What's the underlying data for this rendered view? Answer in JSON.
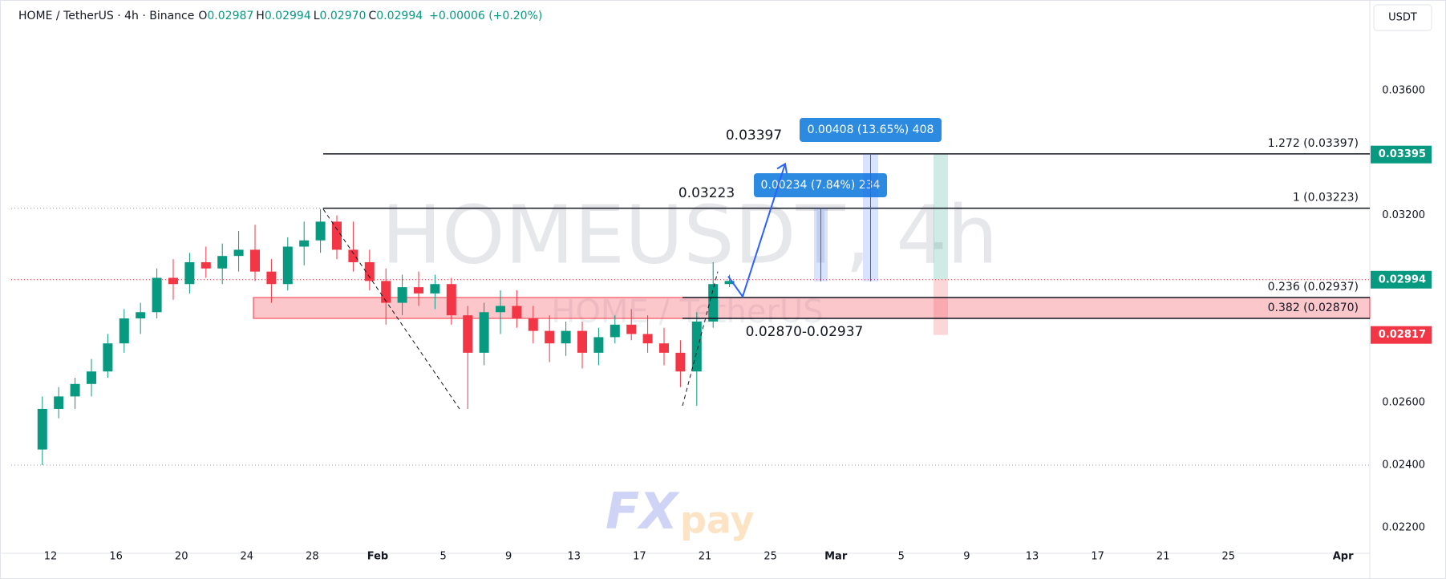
{
  "chart_data": {
    "type": "candlestick",
    "title": "HOME / TetherUS · 4h · Binance",
    "ohlc": [
      {
        "key": "O",
        "value": "0.02987"
      },
      {
        "key": "H",
        "value": "0.02994"
      },
      {
        "key": "L",
        "value": "0.02970"
      },
      {
        "key": "C",
        "value": "0.02994"
      }
    ],
    "change": "+0.00006 (+0.20%)",
    "currency": "USDT",
    "watermark": "HOMEUSDT, 4h",
    "watermark_sub": "HOME / TetherUS",
    "logo": [
      "FX",
      "pay"
    ],
    "up_color": "#089981",
    "down_color": "#f23645",
    "candles": {
      "open": [
        0.0245,
        0.0258,
        0.0262,
        0.0266,
        0.027,
        0.0279,
        0.0287,
        0.0289,
        0.03,
        0.0298,
        0.0305,
        0.0303,
        0.0307,
        0.0309,
        0.0302,
        0.0298,
        0.031,
        0.0312,
        0.0318,
        0.0309,
        0.0305,
        0.0299,
        0.0292,
        0.0297,
        0.0295,
        0.0298,
        0.0288,
        0.0276,
        0.0289,
        0.0291,
        0.0287,
        0.0283,
        0.0279,
        0.0283,
        0.0276,
        0.0281,
        0.0285,
        0.0282,
        0.0279,
        0.0276,
        0.027,
        0.0286,
        0.0298
      ],
      "high": [
        0.0262,
        0.0265,
        0.0268,
        0.0274,
        0.0282,
        0.029,
        0.0292,
        0.0303,
        0.0306,
        0.0308,
        0.031,
        0.0311,
        0.0315,
        0.0317,
        0.0306,
        0.0313,
        0.0318,
        0.0322,
        0.032,
        0.0318,
        0.0309,
        0.0303,
        0.0301,
        0.0302,
        0.0301,
        0.03,
        0.0291,
        0.0292,
        0.0296,
        0.0296,
        0.0291,
        0.0288,
        0.0286,
        0.0286,
        0.0284,
        0.0288,
        0.029,
        0.0288,
        0.0284,
        0.028,
        0.0289,
        0.0305,
        0.0301
      ],
      "low": [
        0.024,
        0.0255,
        0.0258,
        0.0262,
        0.0268,
        0.0276,
        0.0282,
        0.0287,
        0.0293,
        0.0295,
        0.03,
        0.0298,
        0.0302,
        0.0299,
        0.0292,
        0.0296,
        0.0304,
        0.0308,
        0.0306,
        0.0302,
        0.0296,
        0.0285,
        0.0288,
        0.0291,
        0.029,
        0.0285,
        0.0258,
        0.0272,
        0.0282,
        0.0284,
        0.0279,
        0.0273,
        0.0275,
        0.0271,
        0.0272,
        0.0279,
        0.028,
        0.0276,
        0.0272,
        0.0265,
        0.0259,
        0.0284,
        0.0297
      ],
      "close": [
        0.0258,
        0.0262,
        0.0266,
        0.027,
        0.0279,
        0.0287,
        0.0289,
        0.03,
        0.0298,
        0.0305,
        0.0303,
        0.0307,
        0.0309,
        0.0302,
        0.0298,
        0.031,
        0.0312,
        0.0318,
        0.0309,
        0.0305,
        0.0299,
        0.0292,
        0.0297,
        0.0295,
        0.0298,
        0.0288,
        0.0276,
        0.0289,
        0.0291,
        0.0287,
        0.0283,
        0.0279,
        0.0283,
        0.0276,
        0.0281,
        0.0285,
        0.0282,
        0.0279,
        0.0276,
        0.027,
        0.0286,
        0.0298,
        0.0299
      ]
    },
    "ylim": [
      0.0212,
      0.0389
    ],
    "yticks": [
      {
        "value": 0.022,
        "label": "0.02200"
      },
      {
        "value": 0.024,
        "label": "0.02400"
      },
      {
        "value": 0.026,
        "label": "0.02600"
      },
      {
        "value": 0.032,
        "label": "0.03200"
      },
      {
        "value": 0.036,
        "label": "0.03600"
      }
    ],
    "xticks": [
      "12",
      "16",
      "20",
      "24",
      "28",
      "Feb",
      "5",
      "9",
      "13",
      "17",
      "21",
      "25",
      "Mar",
      "5",
      "9",
      "13",
      "17",
      "21",
      "25",
      "Apr"
    ],
    "levels": [
      {
        "value": 0.03397,
        "label": "1.272 (0.03397)"
      },
      {
        "value": 0.03223,
        "label": "1 (0.03223)"
      },
      {
        "value": 0.02937,
        "label": "0.236 (0.02937)"
      },
      {
        "value": 0.0287,
        "label": "0.382 (0.02870)"
      }
    ],
    "targets": [
      "0.03397",
      "0.03223"
    ],
    "zone_label": "0.02870-0.02937",
    "measures": [
      {
        "label": "0.00234 (7.84%) 234",
        "from": 0.02989,
        "to": 0.03223
      },
      {
        "label": "0.00408 (13.65%) 408",
        "from": 0.02989,
        "to": 0.03397
      }
    ],
    "projection": [
      0.03005,
      0.0294,
      0.03365
    ],
    "swings": [
      [
        0.0322,
        0.0258
      ],
      [
        0.0259,
        0.0302
      ]
    ],
    "position": {
      "target": 0.03395,
      "entry": 0.02994,
      "stop": 0.02817
    }
  }
}
